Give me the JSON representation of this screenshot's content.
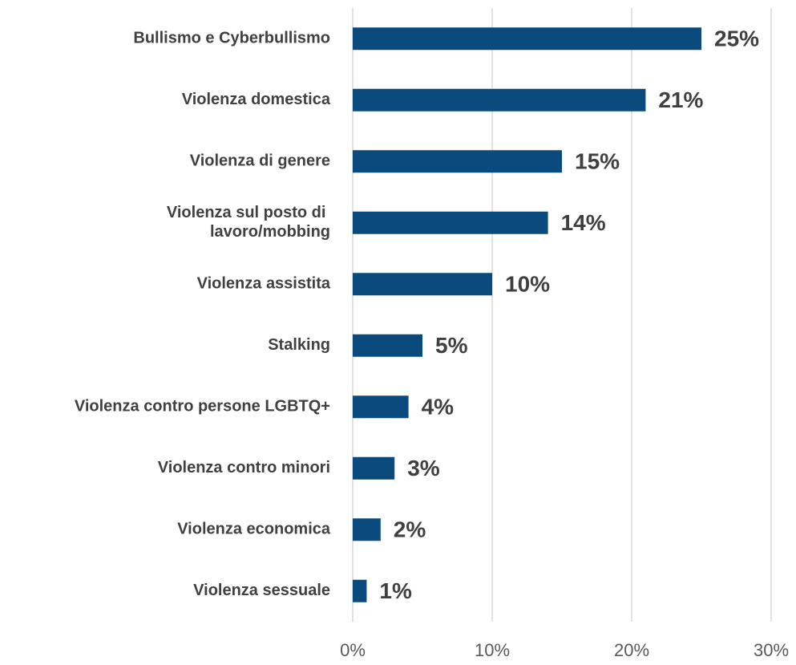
{
  "chart_data": {
    "type": "bar",
    "orientation": "horizontal",
    "categories": [
      "Bullismo e Cyberbullismo",
      "Violenza domestica",
      "Violenza di genere",
      "Violenza sul posto di lavoro/mobbing",
      "Violenza assistita",
      "Stalking",
      "Violenza contro persone LGBTQ+",
      "Violenza contro minori",
      "Violenza economica",
      "Violenza sessuale"
    ],
    "values": [
      25,
      21,
      15,
      14,
      10,
      5,
      4,
      3,
      2,
      1
    ],
    "value_labels": [
      "25%",
      "21%",
      "15%",
      "14%",
      "10%",
      "5%",
      "4%",
      "3%",
      "2%",
      "1%"
    ],
    "color": "#0b4a7d",
    "xlim": [
      0,
      30
    ],
    "xticks": [
      {
        "value": 0,
        "label": "0%"
      },
      {
        "value": 10,
        "label": "10%"
      },
      {
        "value": 20,
        "label": "20%"
      },
      {
        "value": 30,
        "label": "30%"
      }
    ],
    "grid": true
  }
}
